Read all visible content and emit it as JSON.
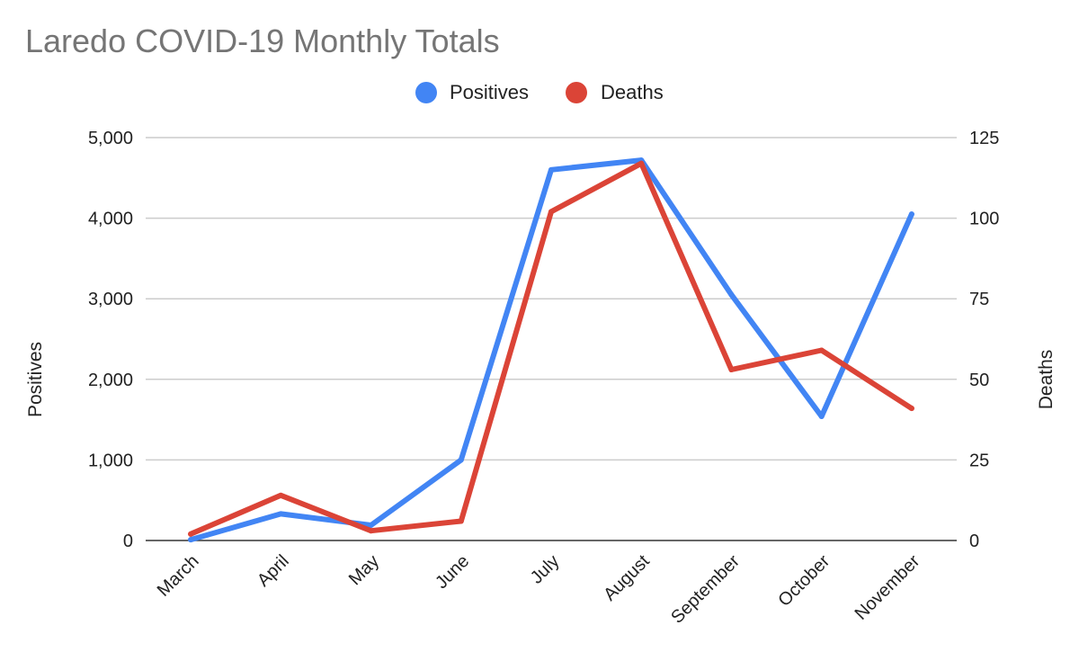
{
  "chart_data": {
    "type": "line",
    "title": "Laredo COVID-19 Monthly Totals",
    "categories": [
      "March",
      "April",
      "May",
      "June",
      "July",
      "August",
      "September",
      "October",
      "November"
    ],
    "series": [
      {
        "name": "Positives",
        "axis": "left",
        "color": "#4285f4",
        "values": [
          10,
          330,
          190,
          1000,
          4600,
          4720,
          3050,
          1540,
          4050
        ]
      },
      {
        "name": "Deaths",
        "axis": "right",
        "color": "#db4437",
        "values": [
          2,
          14,
          3,
          6,
          102,
          117,
          53,
          59,
          41
        ]
      }
    ],
    "y_left": {
      "label": "Positives",
      "range": [
        0,
        5000
      ],
      "ticks": [
        "0",
        "1,000",
        "2,000",
        "3,000",
        "4,000",
        "5,000"
      ]
    },
    "y_right": {
      "label": "Deaths",
      "range": [
        0,
        125
      ],
      "ticks": [
        "0",
        "25",
        "50",
        "75",
        "100",
        "125"
      ]
    },
    "grid": true,
    "legend_position": "top-center"
  }
}
